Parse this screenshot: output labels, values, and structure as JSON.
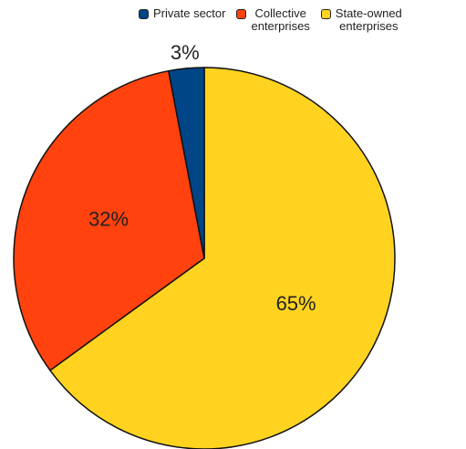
{
  "chart_data": {
    "type": "pie",
    "start_angle_deg": 0,
    "direction": "clockwise",
    "slices": [
      {
        "label": "State-owned enterprises",
        "value": 65,
        "value_label": "65%",
        "color": "#FFD320"
      },
      {
        "label": "Collective enterprises",
        "value": 32,
        "value_label": "32%",
        "color": "#FF420E"
      },
      {
        "label": "Private sector",
        "value": 3,
        "value_label": "3%",
        "color": "#004586"
      }
    ],
    "legend": {
      "placement": "top",
      "entries": [
        {
          "label": "Private sector",
          "color": "#004586"
        },
        {
          "label": "Collective\nenterprises",
          "color": "#FF420E"
        },
        {
          "label": "State-owned\nenterprises",
          "color": "#FFD320"
        }
      ]
    }
  }
}
